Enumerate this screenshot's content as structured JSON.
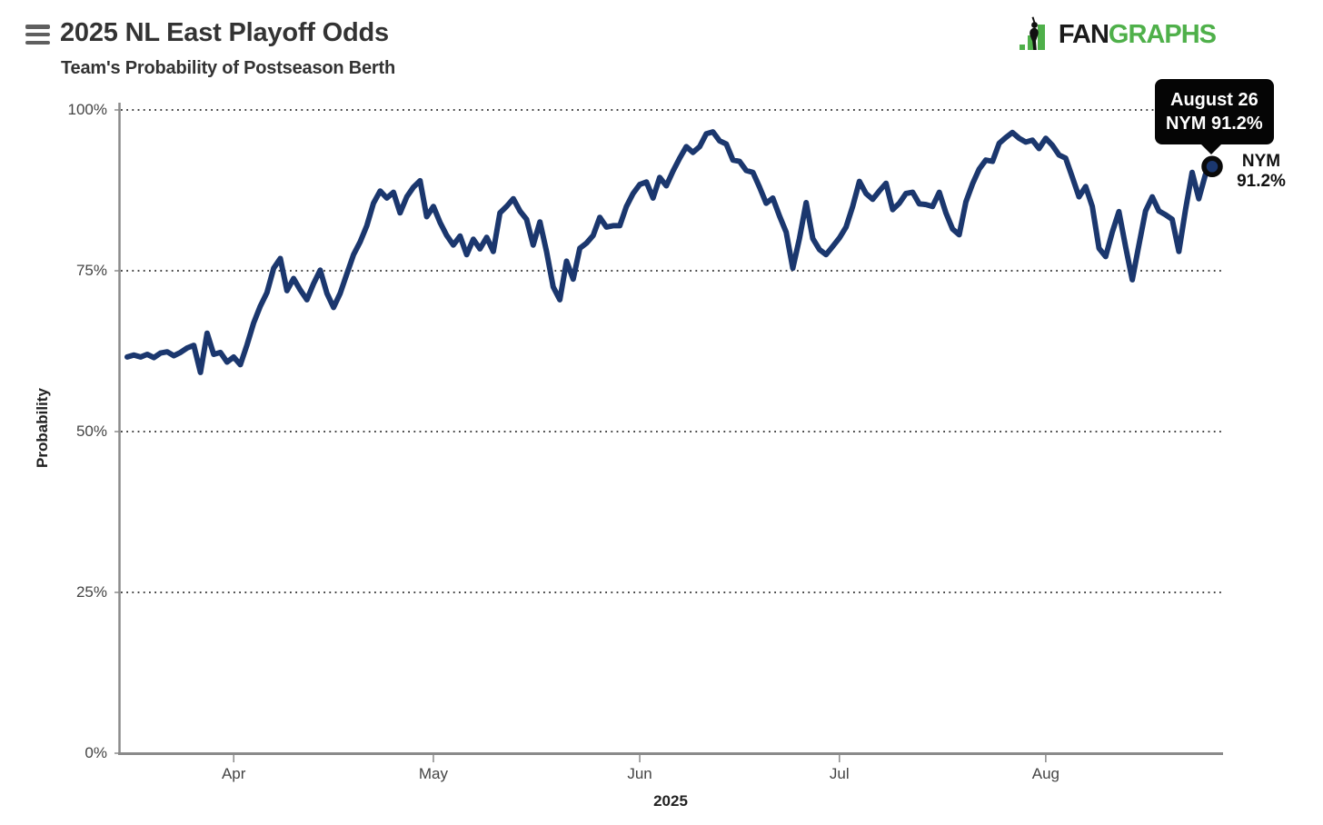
{
  "header": {
    "title": "2025 NL East Playoff Odds",
    "subtitle": "Team's Probability of Postseason Berth",
    "logo_fan": "FAN",
    "logo_graphs": "GRAPHS"
  },
  "tooltip": {
    "line1": "August 26",
    "line2": "NYM 91.2%"
  },
  "end_label": {
    "team": "NYM",
    "value": "91.2%"
  },
  "colors": {
    "line": "#1b376e",
    "marker_ring": "#0a0a0a",
    "axis": "#8a8a8a",
    "grid_dots": "#2b2b2b",
    "tick_text": "#444444",
    "title_text": "#333333",
    "tooltip_bg": "#050505",
    "logo_green": "#4fb04a",
    "logo_black": "#1a1a1a"
  },
  "chart_data": {
    "type": "line",
    "title": "2025 NL East Playoff Odds",
    "subtitle": "Team's Probability of Postseason Berth",
    "xlabel": "2025",
    "ylabel": "Probability",
    "ylim": [
      0,
      100
    ],
    "grid": "horizontal dotted",
    "legend": "none",
    "yticks": [
      {
        "label": "0%",
        "value": 0
      },
      {
        "label": "25%",
        "value": 25
      },
      {
        "label": "50%",
        "value": 50
      },
      {
        "label": "75%",
        "value": 75
      },
      {
        "label": "100%",
        "value": 100
      }
    ],
    "xticks": [
      {
        "label": "Apr",
        "day": 16
      },
      {
        "label": "May",
        "day": 46
      },
      {
        "label": "Jun",
        "day": 77
      },
      {
        "label": "Jul",
        "day": 107
      },
      {
        "label": "Aug",
        "day": 138
      }
    ],
    "x_unit": "day index from March 16, 2025 (one point per day)",
    "x_start_date": "March 16, 2025",
    "x_end_date": "August 26, 2025",
    "series": [
      {
        "name": "NYM",
        "color": "#1b376e",
        "values": [
          61.6,
          61.9,
          61.6,
          62.0,
          61.5,
          62.2,
          62.4,
          61.8,
          62.3,
          63.0,
          63.4,
          59.2,
          65.3,
          62.0,
          62.3,
          60.8,
          61.6,
          60.4,
          63.5,
          66.9,
          69.5,
          71.6,
          75.4,
          76.9,
          71.9,
          73.8,
          72.0,
          70.5,
          73.0,
          75.1,
          71.5,
          69.3,
          71.5,
          74.5,
          77.5,
          79.5,
          82.0,
          85.5,
          87.4,
          86.3,
          87.2,
          84.0,
          86.5,
          88.0,
          89.0,
          83.4,
          85.0,
          82.5,
          80.5,
          79.0,
          80.4,
          77.5,
          79.9,
          78.4,
          80.2,
          78.0,
          84.0,
          85.0,
          86.2,
          84.3,
          83.0,
          79.0,
          82.6,
          78.0,
          72.5,
          70.5,
          76.5,
          73.7,
          78.5,
          79.3,
          80.5,
          83.3,
          81.8,
          82.0,
          82.0,
          85.0,
          87.0,
          88.4,
          88.8,
          86.3,
          89.5,
          88.2,
          90.5,
          92.5,
          94.3,
          93.4,
          94.3,
          96.3,
          96.6,
          95.2,
          94.7,
          92.2,
          92.0,
          90.6,
          90.3,
          88.0,
          85.5,
          86.3,
          83.5,
          81.0,
          75.4,
          80.0,
          85.6,
          80.0,
          78.3,
          77.5,
          78.8,
          80.1,
          81.8,
          85.0,
          88.9,
          87.0,
          86.1,
          87.4,
          88.6,
          84.5,
          85.5,
          87.0,
          87.2,
          85.4,
          85.3,
          85.0,
          87.2,
          84.0,
          81.5,
          80.6,
          85.7,
          88.5,
          90.8,
          92.2,
          92.0,
          94.8,
          95.7,
          96.5,
          95.6,
          95.0,
          95.3,
          94.0,
          95.6,
          94.5,
          93.0,
          92.5,
          89.5,
          86.5,
          88.1,
          85.0,
          78.5,
          77.2,
          81.0,
          84.2,
          78.7,
          73.6,
          79.0,
          84.3,
          86.5,
          84.3,
          83.7,
          83.0,
          78.0,
          84.5,
          90.3,
          86.2,
          90.0,
          91.2
        ]
      }
    ],
    "end_point": {
      "date": "August 26",
      "team": "NYM",
      "value_pct": 91.2
    }
  }
}
